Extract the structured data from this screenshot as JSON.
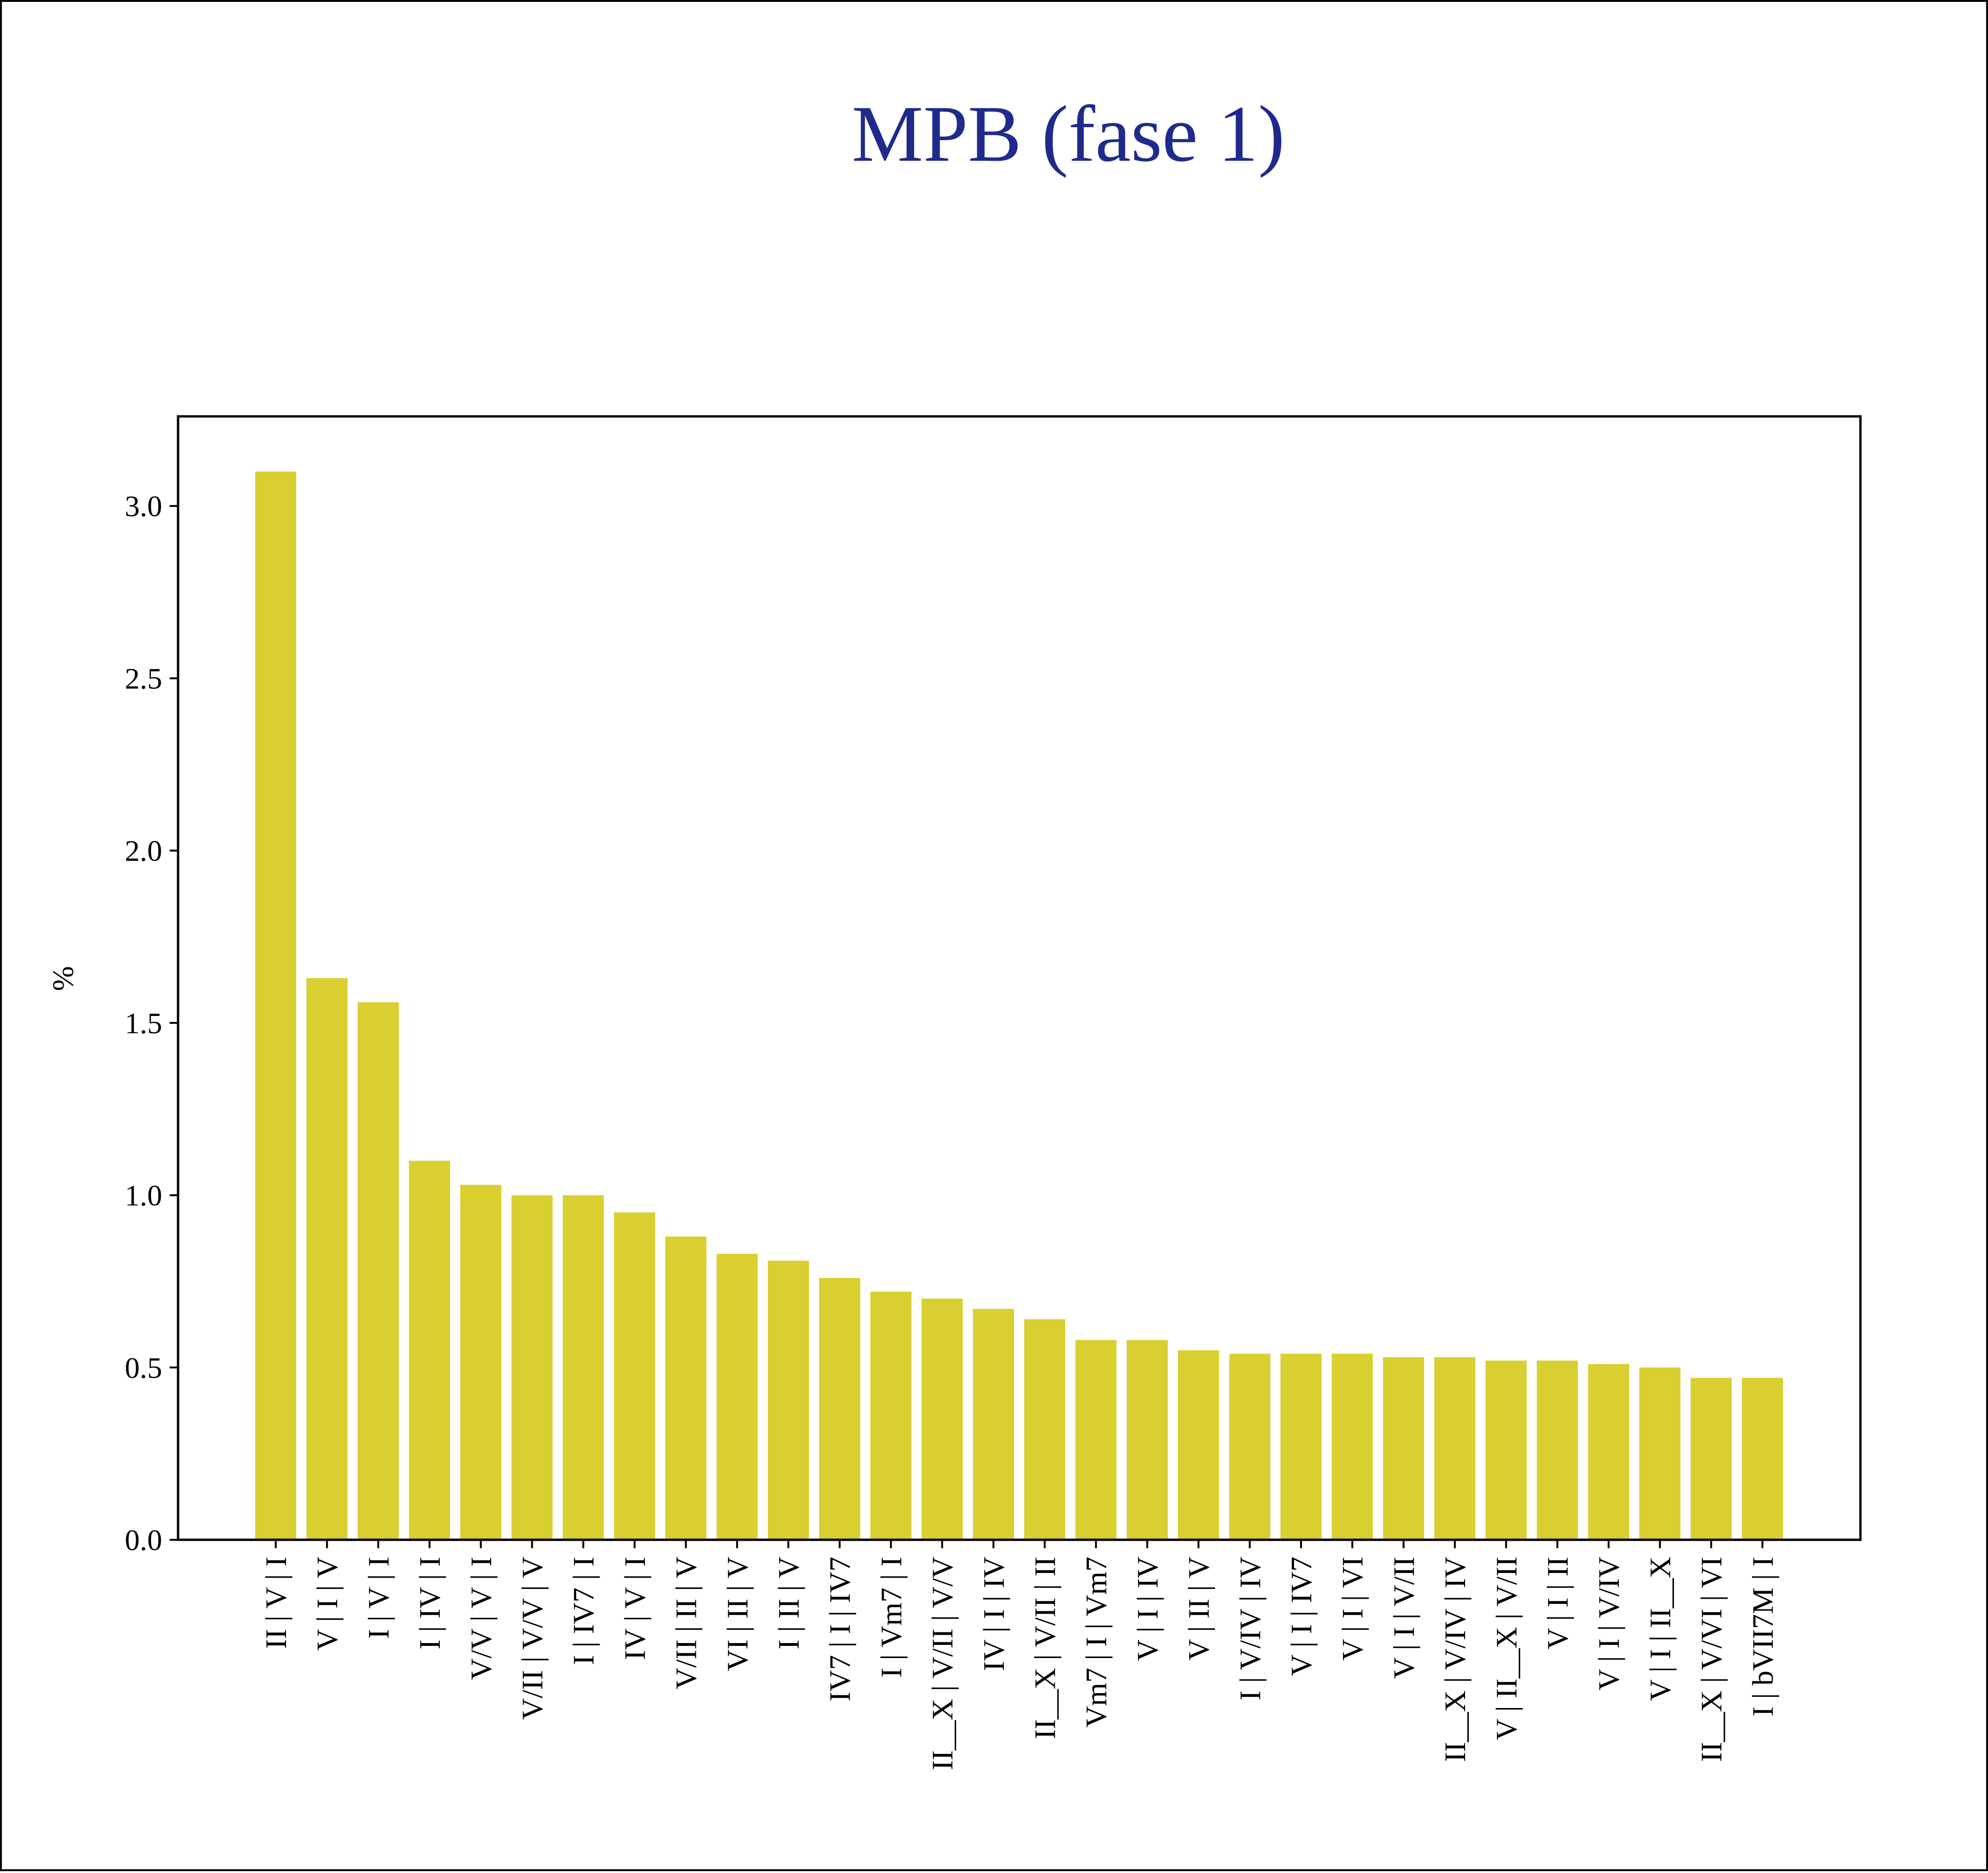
{
  "chart_data": {
    "type": "bar",
    "title": "MPB (fase 1)",
    "xlabel": "",
    "ylabel": "%",
    "ylim": [
      0,
      3.26
    ],
    "yticks": [
      "0.0",
      "0.5",
      "1.0",
      "1.5",
      "2.0",
      "2.5",
      "3.0"
    ],
    "grid": false,
    "categories": [
      "II | V | I",
      "V | I | V",
      "I | V | I",
      "I | IV | I",
      "V/V | V | I",
      "V/II | V/V | V",
      "I | IV7 | I",
      "IV | V | I",
      "V/II | II | V",
      "VI | II | V",
      "I | II | V",
      "IV7 | I | IV7",
      "I | Vm7 | I",
      "II__X | V/II | V/V",
      "IV | I | IV",
      "II__X | V/II | II",
      "Vm7 | I | Vm7",
      "V | I | IV",
      "V | II | V",
      "I | V/IV | IV",
      "V | I | IV7",
      "V | I | VI",
      "V | I | V/II",
      "II__X | V/IV | IV",
      "V | II__X | V/II",
      "V | I | II",
      "V | I | V/IV",
      "V | I | II__X",
      "II__X | V/VI | VI",
      "I | bVII7M | I"
    ],
    "values": [
      3.1,
      1.63,
      1.56,
      1.1,
      1.03,
      1.0,
      1.0,
      0.95,
      0.88,
      0.83,
      0.81,
      0.76,
      0.72,
      0.7,
      0.67,
      0.64,
      0.58,
      0.58,
      0.55,
      0.54,
      0.54,
      0.54,
      0.53,
      0.53,
      0.52,
      0.52,
      0.51,
      0.5,
      0.47,
      0.47
    ],
    "colors": {
      "bar": "#d9cf30",
      "title": "#1f2a8c",
      "axis": "#000000"
    }
  }
}
